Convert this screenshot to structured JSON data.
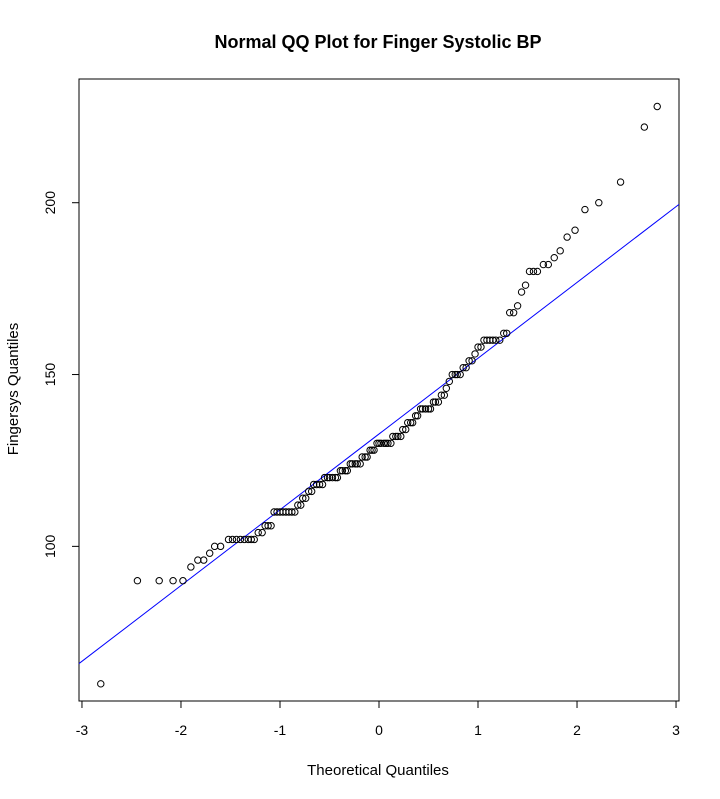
{
  "chart_data": {
    "type": "scatter",
    "title": "Normal QQ Plot for Finger Systolic BP",
    "xlabel": "Theoretical Quantiles",
    "ylabel": "Fingersys Quantiles",
    "xlim": [
      -3,
      3
    ],
    "ylim": [
      60,
      230
    ],
    "xticks": [
      -3,
      -2,
      -1,
      0,
      1,
      2,
      3
    ],
    "xtick_labels": [
      "-3",
      "-2",
      "-1",
      "0",
      "1",
      "2",
      "3"
    ],
    "yticks": [
      100,
      150,
      200
    ],
    "ytick_labels": [
      "100",
      "150",
      "200"
    ],
    "grid": false,
    "reference_line": {
      "color": "#0000ff",
      "intercept": 132.7,
      "slope": 22.05
    },
    "point_color": "#000000",
    "points": [
      [
        -2.81,
        60
      ],
      [
        -2.44,
        90
      ],
      [
        -2.22,
        90
      ],
      [
        -2.08,
        90
      ],
      [
        -1.98,
        90
      ],
      [
        -1.9,
        94
      ],
      [
        -1.83,
        96
      ],
      [
        -1.77,
        96
      ],
      [
        -1.71,
        98
      ],
      [
        -1.66,
        100
      ],
      [
        -1.6,
        100
      ],
      [
        -1.52,
        102
      ],
      [
        -1.48,
        102
      ],
      [
        -1.44,
        102
      ],
      [
        -1.4,
        102
      ],
      [
        -1.36,
        102
      ],
      [
        -1.32,
        102
      ],
      [
        -1.29,
        102
      ],
      [
        -1.26,
        102
      ],
      [
        -1.22,
        104
      ],
      [
        -1.18,
        104
      ],
      [
        -1.15,
        106
      ],
      [
        -1.12,
        106
      ],
      [
        -1.09,
        106
      ],
      [
        -1.06,
        110
      ],
      [
        -1.03,
        110
      ],
      [
        -1.0,
        110
      ],
      [
        -0.97,
        110
      ],
      [
        -0.94,
        110
      ],
      [
        -0.91,
        110
      ],
      [
        -0.88,
        110
      ],
      [
        -0.85,
        110
      ],
      [
        -0.82,
        112
      ],
      [
        -0.79,
        112
      ],
      [
        -0.77,
        114
      ],
      [
        -0.74,
        114
      ],
      [
        -0.71,
        116
      ],
      [
        -0.68,
        116
      ],
      [
        -0.66,
        118
      ],
      [
        -0.63,
        118
      ],
      [
        -0.6,
        118
      ],
      [
        -0.57,
        118
      ],
      [
        -0.55,
        120
      ],
      [
        -0.52,
        120
      ],
      [
        -0.5,
        120
      ],
      [
        -0.47,
        120
      ],
      [
        -0.44,
        120
      ],
      [
        -0.42,
        120
      ],
      [
        -0.39,
        122
      ],
      [
        -0.37,
        122
      ],
      [
        -0.34,
        122
      ],
      [
        -0.32,
        122
      ],
      [
        -0.29,
        124
      ],
      [
        -0.27,
        124
      ],
      [
        -0.24,
        124
      ],
      [
        -0.22,
        124
      ],
      [
        -0.19,
        124
      ],
      [
        -0.17,
        126
      ],
      [
        -0.14,
        126
      ],
      [
        -0.12,
        126
      ],
      [
        -0.09,
        128
      ],
      [
        -0.07,
        128
      ],
      [
        -0.05,
        128
      ],
      [
        -0.02,
        130
      ],
      [
        0.0,
        130
      ],
      [
        0.02,
        130
      ],
      [
        0.05,
        130
      ],
      [
        0.07,
        130
      ],
      [
        0.09,
        130
      ],
      [
        0.12,
        130
      ],
      [
        0.14,
        132
      ],
      [
        0.17,
        132
      ],
      [
        0.19,
        132
      ],
      [
        0.22,
        132
      ],
      [
        0.24,
        134
      ],
      [
        0.27,
        134
      ],
      [
        0.29,
        136
      ],
      [
        0.32,
        136
      ],
      [
        0.34,
        136
      ],
      [
        0.37,
        138
      ],
      [
        0.39,
        138
      ],
      [
        0.42,
        140
      ],
      [
        0.44,
        140
      ],
      [
        0.47,
        140
      ],
      [
        0.5,
        140
      ],
      [
        0.52,
        140
      ],
      [
        0.55,
        142
      ],
      [
        0.57,
        142
      ],
      [
        0.6,
        142
      ],
      [
        0.63,
        144
      ],
      [
        0.66,
        144
      ],
      [
        0.68,
        146
      ],
      [
        0.71,
        148
      ],
      [
        0.74,
        150
      ],
      [
        0.77,
        150
      ],
      [
        0.79,
        150
      ],
      [
        0.82,
        150
      ],
      [
        0.85,
        152
      ],
      [
        0.88,
        152
      ],
      [
        0.91,
        154
      ],
      [
        0.94,
        154
      ],
      [
        0.97,
        156
      ],
      [
        1.0,
        158
      ],
      [
        1.03,
        158
      ],
      [
        1.06,
        160
      ],
      [
        1.09,
        160
      ],
      [
        1.12,
        160
      ],
      [
        1.15,
        160
      ],
      [
        1.18,
        160
      ],
      [
        1.22,
        160
      ],
      [
        1.26,
        162
      ],
      [
        1.29,
        162
      ],
      [
        1.32,
        168
      ],
      [
        1.36,
        168
      ],
      [
        1.4,
        170
      ],
      [
        1.44,
        174
      ],
      [
        1.48,
        176
      ],
      [
        1.52,
        180
      ],
      [
        1.56,
        180
      ],
      [
        1.6,
        180
      ],
      [
        1.66,
        182
      ],
      [
        1.71,
        182
      ],
      [
        1.77,
        184
      ],
      [
        1.83,
        186
      ],
      [
        1.9,
        190
      ],
      [
        1.98,
        192
      ],
      [
        2.08,
        198
      ],
      [
        2.22,
        200
      ],
      [
        2.44,
        206
      ],
      [
        2.68,
        222
      ],
      [
        2.81,
        228
      ]
    ]
  }
}
